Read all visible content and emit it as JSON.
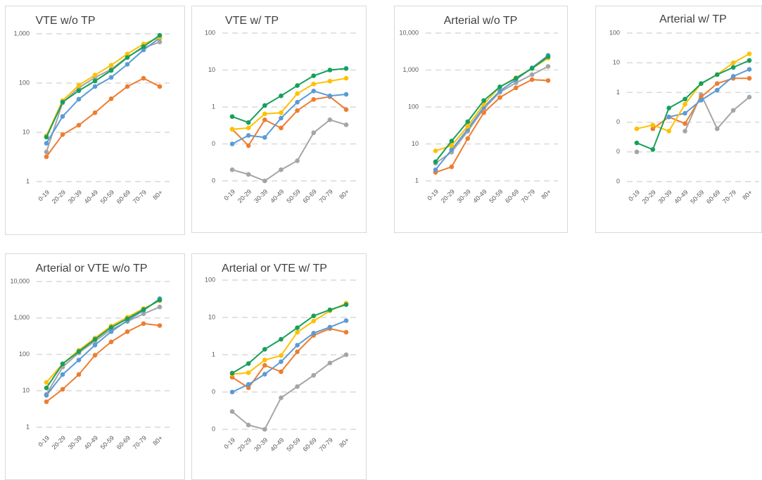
{
  "chart_data": [
    {
      "type": "line",
      "title": "VTE w/o TP",
      "log_scale": true,
      "grid": true,
      "categories": [
        "0-19",
        "20-29",
        "30-39",
        "40-49",
        "50-59",
        "60-69",
        "70-79",
        "80+"
      ],
      "ylim": [
        1,
        1000
      ],
      "yticks": [
        1,
        10,
        100,
        {
          "value": 1000,
          "label": "1,000"
        }
      ],
      "series": [
        {
          "color": "#a5a5a5",
          "values": [
            4,
            40,
            80,
            130,
            190,
            340,
            520,
            680
          ]
        },
        {
          "color": "#ed7d31",
          "values": [
            3.2,
            9,
            14,
            25,
            48,
            85,
            125,
            85
          ]
        },
        {
          "color": "#5b9bd5",
          "values": [
            6,
            21,
            47,
            85,
            130,
            240,
            470,
            820
          ]
        },
        {
          "color": "#ffc000",
          "values": [
            8.5,
            44,
            90,
            145,
            230,
            390,
            620,
            850
          ]
        },
        {
          "color": "#16a05a",
          "values": [
            8,
            41,
            70,
            110,
            180,
            330,
            550,
            930
          ]
        }
      ]
    },
    {
      "type": "line",
      "title": "VTE w/ TP",
      "log_scale": true,
      "grid": true,
      "categories": [
        "0-19",
        "20-29",
        "30-39",
        "40-49",
        "50-59",
        "60-69",
        "70-79",
        "80+"
      ],
      "ylim": [
        0.01,
        100
      ],
      "yticks": [
        {
          "value": 0.01,
          "label": "0"
        },
        {
          "value": 0.1,
          "label": "0"
        },
        1,
        10,
        100
      ],
      "series": [
        {
          "color": "#a5a5a5",
          "values": [
            0.02,
            0.015,
            0.01,
            0.02,
            0.035,
            0.2,
            0.45,
            0.33
          ]
        },
        {
          "color": "#ed7d31",
          "values": [
            0.25,
            0.09,
            0.45,
            0.27,
            0.8,
            1.6,
            1.9,
            0.85
          ]
        },
        {
          "color": "#5b9bd5",
          "values": [
            0.1,
            0.17,
            0.15,
            0.5,
            1.35,
            2.7,
            2,
            2.2
          ]
        },
        {
          "color": "#ffc000",
          "values": [
            0.25,
            0.27,
            0.65,
            0.7,
            2.3,
            4.2,
            5,
            6
          ]
        },
        {
          "color": "#16a05a",
          "values": [
            0.55,
            0.38,
            1.1,
            2,
            3.8,
            7,
            10,
            11
          ]
        }
      ]
    },
    {
      "type": "line",
      "title": "Arterial w/o TP",
      "log_scale": true,
      "grid": true,
      "categories": [
        "0-19",
        "20-29",
        "30-39",
        "40-49",
        "50-59",
        "60-69",
        "70-79",
        "80+"
      ],
      "ylim": [
        1,
        10000
      ],
      "yticks": [
        1,
        10,
        100,
        {
          "value": 1000,
          "label": "1,000"
        },
        {
          "value": 10000,
          "label": "10,000"
        }
      ],
      "series": [
        {
          "color": "#a5a5a5",
          "values": [
            3,
            6,
            22,
            90,
            250,
            450,
            750,
            1250
          ]
        },
        {
          "color": "#ed7d31",
          "values": [
            1.7,
            2.4,
            14,
            70,
            180,
            330,
            550,
            520
          ]
        },
        {
          "color": "#5b9bd5",
          "values": [
            2,
            7,
            25,
            100,
            270,
            550,
            1150,
            2500
          ]
        },
        {
          "color": "#ffc000",
          "values": [
            6.5,
            9,
            30,
            120,
            350,
            620,
            1100,
            2100
          ]
        },
        {
          "color": "#16a05a",
          "values": [
            3.3,
            12,
            40,
            150,
            350,
            600,
            1100,
            2300
          ]
        }
      ]
    },
    {
      "type": "line",
      "title": "Arterial w/ TP",
      "log_scale": true,
      "grid": true,
      "categories": [
        "0-19",
        "20-29",
        "30-39",
        "40-49",
        "50-59",
        "60-69",
        "70-79",
        "80+"
      ],
      "ylim": [
        0.001,
        100
      ],
      "yticks": [
        {
          "value": 0.001,
          "label": "0"
        },
        {
          "value": 0.01,
          "label": "0"
        },
        {
          "value": 0.1,
          "label": "0"
        },
        1,
        10,
        100
      ],
      "series": [
        {
          "color": "#a5a5a5",
          "values": [
            0.01,
            null,
            null,
            0.05,
            0.85,
            0.06,
            0.25,
            0.7
          ]
        },
        {
          "color": "#ed7d31",
          "values": [
            null,
            0.06,
            0.15,
            0.09,
            0.7,
            2,
            3,
            3
          ]
        },
        {
          "color": "#5b9bd5",
          "values": [
            null,
            null,
            0.15,
            0.2,
            0.55,
            1.2,
            3.5,
            6
          ]
        },
        {
          "color": "#ffc000",
          "values": [
            0.06,
            0.08,
            0.05,
            0.4,
            2,
            4,
            10,
            20
          ]
        },
        {
          "color": "#16a05a",
          "values": [
            0.02,
            0.012,
            0.3,
            0.6,
            2,
            4,
            7,
            12
          ]
        }
      ]
    },
    {
      "type": "line",
      "title": "Arterial or VTE w/o TP",
      "log_scale": true,
      "grid": true,
      "categories": [
        "0-19",
        "20-29",
        "30-39",
        "40-49",
        "50-59",
        "60-69",
        "70-79",
        "80+"
      ],
      "ylim": [
        1,
        10000
      ],
      "yticks": [
        1,
        10,
        100,
        {
          "value": 1000,
          "label": "1,000"
        },
        {
          "value": 10000,
          "label": "10,000"
        }
      ],
      "series": [
        {
          "color": "#a5a5a5",
          "values": [
            8,
            45,
            110,
            230,
            480,
            800,
            1300,
            2000
          ]
        },
        {
          "color": "#ed7d31",
          "values": [
            5,
            11,
            28,
            95,
            220,
            420,
            700,
            620
          ]
        },
        {
          "color": "#5b9bd5",
          "values": [
            7.5,
            28,
            70,
            180,
            420,
            850,
            1600,
            3400
          ]
        },
        {
          "color": "#ffc000",
          "values": [
            17,
            55,
            130,
            280,
            600,
            1050,
            1800,
            3000
          ]
        },
        {
          "color": "#16a05a",
          "values": [
            12,
            55,
            120,
            260,
            550,
            950,
            1700,
            3100
          ]
        }
      ]
    },
    {
      "type": "line",
      "title": "Arterial or VTE w/ TP",
      "log_scale": true,
      "grid": true,
      "categories": [
        "0-19",
        "20-29",
        "30-39",
        "40-49",
        "50-59",
        "60-69",
        "70-79",
        "80+"
      ],
      "ylim": [
        0.01,
        100
      ],
      "yticks": [
        {
          "value": 0.01,
          "label": "0"
        },
        {
          "value": 0.1,
          "label": "0"
        },
        1,
        10,
        100
      ],
      "series": [
        {
          "color": "#a5a5a5",
          "values": [
            0.03,
            0.013,
            0.01,
            0.07,
            0.14,
            0.28,
            0.6,
            1
          ]
        },
        {
          "color": "#ed7d31",
          "values": [
            0.25,
            0.13,
            0.52,
            0.35,
            1.2,
            3.3,
            5,
            4
          ]
        },
        {
          "color": "#5b9bd5",
          "values": [
            0.1,
            0.16,
            0.3,
            0.65,
            1.8,
            3.8,
            5.5,
            8.2
          ]
        },
        {
          "color": "#ffc000",
          "values": [
            0.3,
            0.33,
            0.72,
            0.95,
            4,
            8,
            15,
            24
          ]
        },
        {
          "color": "#16a05a",
          "values": [
            0.32,
            0.58,
            1.4,
            2.6,
            5.3,
            11,
            16,
            22
          ]
        }
      ]
    }
  ]
}
